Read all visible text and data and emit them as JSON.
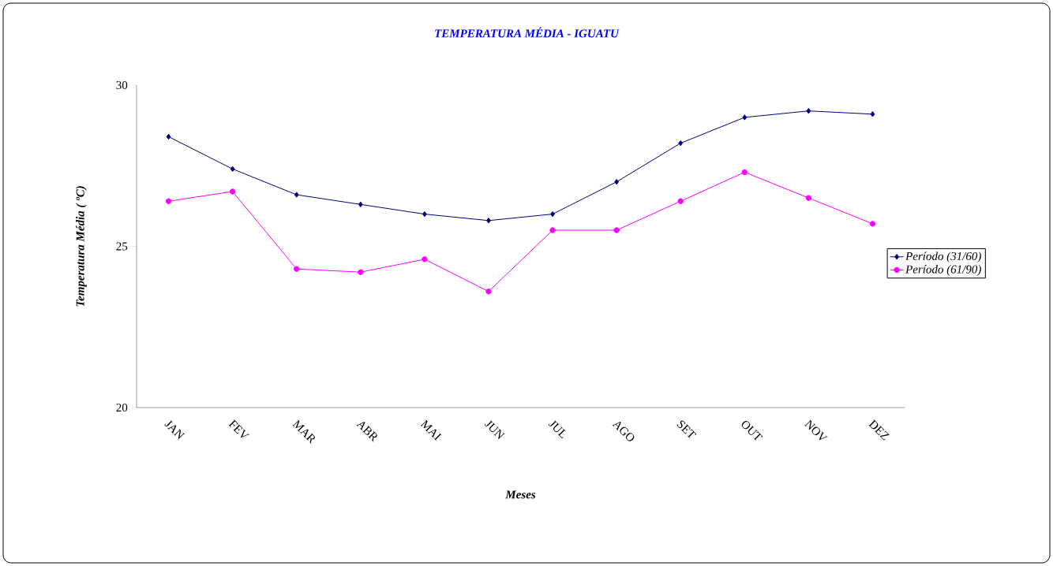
{
  "chart_data": {
    "type": "line",
    "title": "TEMPERATURA MÉDIA  - IGUATU",
    "xlabel": "Meses",
    "ylabel": "Temperatura Média ( ºC)",
    "categories": [
      "JAN",
      "FEV",
      "MAR",
      "ABR",
      "MAI",
      "JUN",
      "JUL",
      "AGO",
      "SET",
      "OUT",
      "NOV",
      "DEZ"
    ],
    "series": [
      {
        "name": "Período (31/60)",
        "color": "#000080",
        "marker": "diamond",
        "values": [
          28.4,
          27.4,
          26.6,
          26.3,
          26.0,
          25.8,
          26.0,
          27.0,
          28.2,
          29.0,
          29.2,
          29.1
        ]
      },
      {
        "name": "Período  (61/90)",
        "color": "#ff00ff",
        "marker": "circle",
        "values": [
          26.4,
          26.7,
          24.3,
          24.2,
          24.6,
          23.6,
          25.5,
          25.5,
          26.4,
          27.3,
          26.5,
          25.7
        ]
      }
    ],
    "ylim": [
      20,
      30
    ],
    "yticks": [
      20,
      25,
      30
    ],
    "grid": false,
    "legend": "right",
    "line_style": "solid"
  }
}
